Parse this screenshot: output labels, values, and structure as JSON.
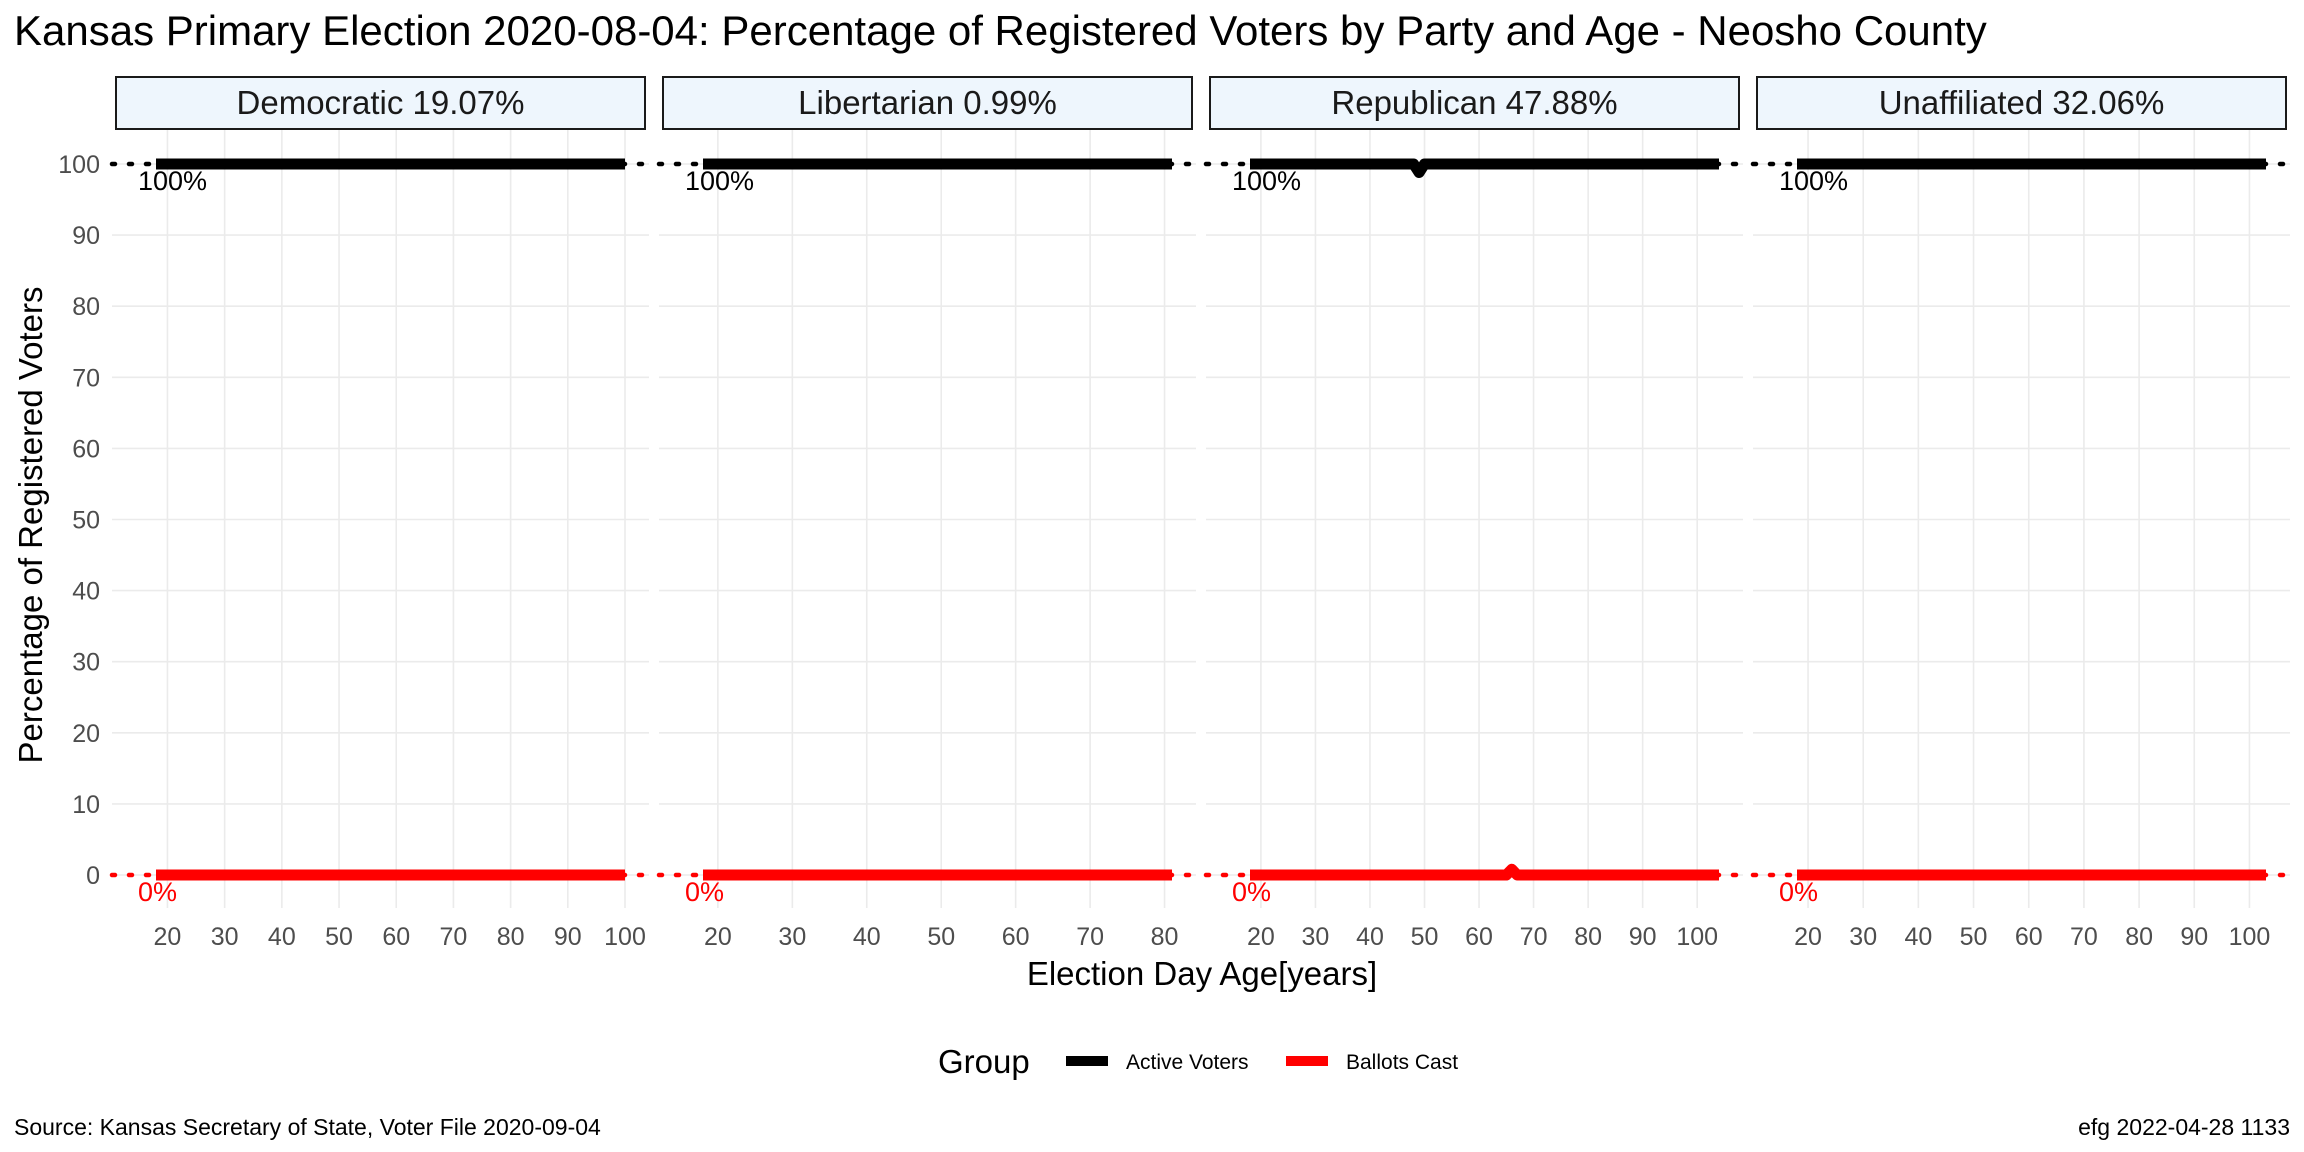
{
  "title": "Kansas Primary Election 2020-08-04:  Percentage of Registered Voters by Party and Age - Neosho County",
  "caption_left": "Source:  Kansas Secretary of State, Voter File  2020-09-04",
  "caption_right": "efg 2022-04-28 1133",
  "colors": {
    "active": "#000000",
    "ballots": "#ff0000"
  },
  "chart_data": {
    "type": "line",
    "title": "Kansas Primary Election 2020-08-04:  Percentage of Registered Voters by Party and Age - Neosho County",
    "xlabel": "Election Day Age[years]",
    "ylabel": "Percentage of Registered Voters",
    "ylim": [
      0,
      100
    ],
    "y_ticks": [
      0,
      10,
      20,
      30,
      40,
      50,
      60,
      70,
      80,
      90,
      100
    ],
    "grid": true,
    "legend": {
      "title": "Group",
      "position": "bottom",
      "entries": [
        {
          "label": "Active Voters",
          "color": "#000000"
        },
        {
          "label": "Ballots Cast",
          "color": "#ff0000"
        }
      ]
    },
    "reference_lines": [
      {
        "y": 100,
        "label": "100%",
        "color": "#000000",
        "style": "dotted"
      },
      {
        "y": 0,
        "label": "0%",
        "color": "#ff0000",
        "style": "dotted"
      }
    ],
    "panels": [
      {
        "strip": "Democratic 19.07%",
        "xlim": [
          18,
          100
        ],
        "x_ticks": [
          20,
          30,
          40,
          50,
          60,
          70,
          80,
          90,
          100
        ],
        "series": [
          {
            "name": "Active Voters",
            "color": "#000000",
            "x": [
              18,
              100
            ],
            "y": [
              100,
              100
            ]
          },
          {
            "name": "Ballots Cast",
            "color": "#ff0000",
            "x": [
              18,
              100
            ],
            "y": [
              0,
              0
            ]
          }
        ]
      },
      {
        "strip": "Libertarian 0.99%",
        "xlim": [
          18,
          81
        ],
        "x_ticks": [
          20,
          30,
          40,
          50,
          60,
          70,
          80
        ],
        "series": [
          {
            "name": "Active Voters",
            "color": "#000000",
            "x": [
              18,
              81
            ],
            "y": [
              100,
              100
            ]
          },
          {
            "name": "Ballots Cast",
            "color": "#ff0000",
            "x": [
              18,
              81
            ],
            "y": [
              0,
              0
            ]
          }
        ]
      },
      {
        "strip": "Republican 47.88%",
        "xlim": [
          18,
          104
        ],
        "x_ticks": [
          20,
          30,
          40,
          50,
          60,
          70,
          80,
          90,
          100
        ],
        "series": [
          {
            "name": "Active Voters",
            "color": "#000000",
            "x": [
              18,
              48,
              49,
              50,
              104
            ],
            "y": [
              100,
              100,
              98.8,
              100,
              100
            ]
          },
          {
            "name": "Ballots Cast",
            "color": "#ff0000",
            "x": [
              18,
              65,
              66,
              67,
              104
            ],
            "y": [
              0,
              0,
              0.8,
              0,
              0
            ]
          }
        ]
      },
      {
        "strip": "Unaffiliated 32.06%",
        "xlim": [
          18,
          103
        ],
        "x_ticks": [
          20,
          30,
          40,
          50,
          60,
          70,
          80,
          90,
          100
        ],
        "series": [
          {
            "name": "Active Voters",
            "color": "#000000",
            "x": [
              18,
              103
            ],
            "y": [
              100,
              100
            ]
          },
          {
            "name": "Ballots Cast",
            "color": "#ff0000",
            "x": [
              18,
              103
            ],
            "y": [
              0,
              0
            ]
          }
        ]
      }
    ]
  }
}
